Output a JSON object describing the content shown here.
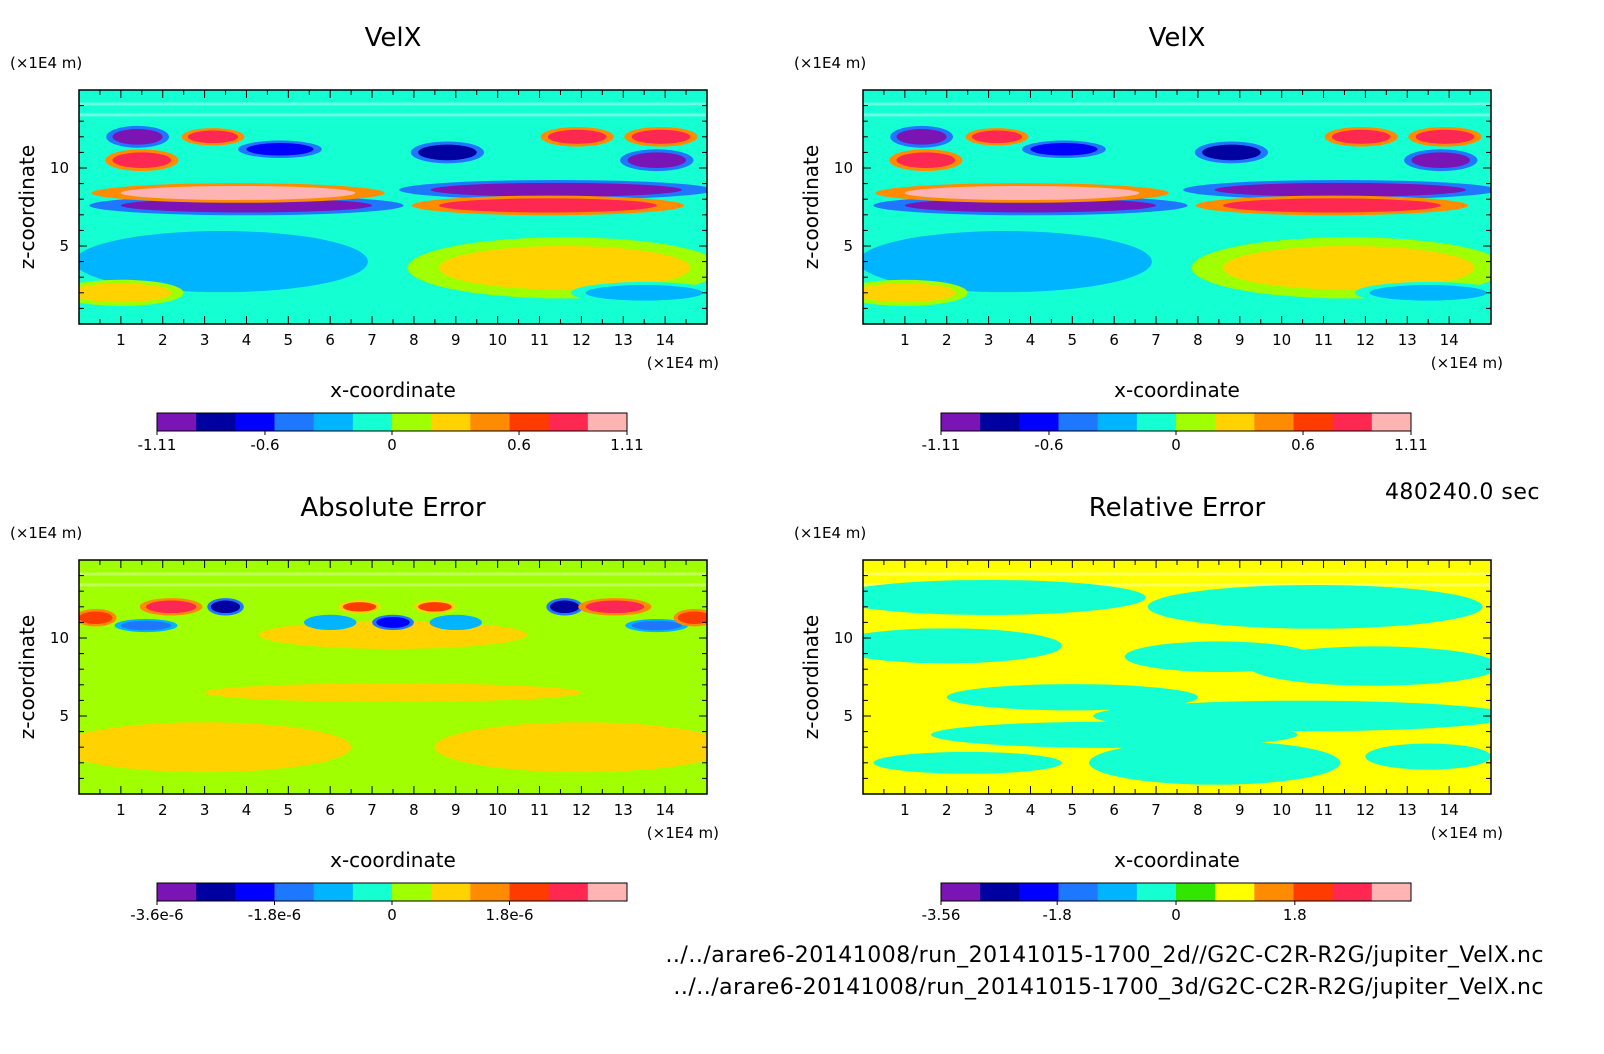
{
  "figure": {
    "time_label": "480240.0 sec",
    "files": [
      "../../arare6-20141008/run_20141015-1700_2d//G2C-C2R-R2G/jupiter_VelX.nc",
      "../../arare6-20141008/run_20141015-1700_3d/G2C-C2R-R2G/jupiter_VelX.nc"
    ]
  },
  "chart_data": [
    {
      "type": "heatmap",
      "title": "VelX",
      "xlabel": "x-coordinate",
      "ylabel": "z-coordinate",
      "x_unit": "(×1E4 m)",
      "y_unit": "(×1E4 m)",
      "xlim": [
        0,
        15
      ],
      "ylim": [
        0,
        15
      ],
      "x_ticks": [
        "1",
        "2",
        "3",
        "4",
        "5",
        "6",
        "7",
        "8",
        "9",
        "10",
        "11",
        "12",
        "13",
        "14"
      ],
      "y_ticks": [
        "5",
        "10"
      ],
      "colorbar": {
        "colors": [
          "#7b14b4",
          "#0000a0",
          "#0000ff",
          "#1e78ff",
          "#00b4ff",
          "#14ffd2",
          "#a0ff00",
          "#ffd200",
          "#ff8c00",
          "#ff3c00",
          "#ff2850",
          "#ffb4b4"
        ],
        "tick_labels": [
          "-1.11",
          "-0.6",
          "0",
          "0.6",
          "1.11"
        ],
        "tick_values": [
          -1.11,
          -0.6,
          0,
          0.6,
          1.11
        ],
        "range": [
          -1.11,
          1.11
        ]
      },
      "field": {
        "background": "#14ffd2",
        "features": [
          {
            "x": 4.0,
            "z": 7.6,
            "rx": 3.0,
            "rz": 0.45,
            "value": -1.0
          },
          {
            "x": 3.8,
            "z": 8.4,
            "rx": 2.8,
            "rz": 0.45,
            "value": 1.0
          },
          {
            "x": 11.4,
            "z": 8.6,
            "rx": 3.0,
            "rz": 0.45,
            "value": -1.0
          },
          {
            "x": 11.2,
            "z": 7.6,
            "rx": 2.6,
            "rz": 0.45,
            "value": 0.9
          },
          {
            "x": 1.4,
            "z": 12.0,
            "rx": 0.6,
            "rz": 0.5,
            "value": -1.0
          },
          {
            "x": 1.5,
            "z": 10.5,
            "rx": 0.7,
            "rz": 0.5,
            "value": 0.9
          },
          {
            "x": 3.2,
            "z": 12.0,
            "rx": 0.6,
            "rz": 0.4,
            "value": 0.8
          },
          {
            "x": 4.8,
            "z": 11.2,
            "rx": 0.8,
            "rz": 0.4,
            "value": -0.7
          },
          {
            "x": 8.8,
            "z": 11.0,
            "rx": 0.7,
            "rz": 0.5,
            "value": -0.9
          },
          {
            "x": 11.9,
            "z": 12.0,
            "rx": 0.7,
            "rz": 0.45,
            "value": 0.9
          },
          {
            "x": 13.9,
            "z": 12.0,
            "rx": 0.7,
            "rz": 0.45,
            "value": 0.9
          },
          {
            "x": 13.8,
            "z": 10.5,
            "rx": 0.7,
            "rz": 0.5,
            "value": -1.0
          },
          {
            "x": 3.4,
            "z": 4.0,
            "rx": 2.8,
            "rz": 1.4,
            "value": -0.35
          },
          {
            "x": 11.6,
            "z": 3.6,
            "rx": 3.0,
            "rz": 1.4,
            "value": 0.3
          },
          {
            "x": 1.0,
            "z": 2.0,
            "rx": 1.2,
            "rz": 0.6,
            "value": 0.3
          },
          {
            "x": 13.5,
            "z": 2.0,
            "rx": 1.4,
            "rz": 0.5,
            "value": -0.3
          }
        ]
      }
    },
    {
      "type": "heatmap",
      "title": "VelX",
      "xlabel": "x-coordinate",
      "ylabel": "z-coordinate",
      "x_unit": "(×1E4 m)",
      "y_unit": "(×1E4 m)",
      "xlim": [
        0,
        15
      ],
      "ylim": [
        0,
        15
      ],
      "x_ticks": [
        "1",
        "2",
        "3",
        "4",
        "5",
        "6",
        "7",
        "8",
        "9",
        "10",
        "11",
        "12",
        "13",
        "14"
      ],
      "y_ticks": [
        "5",
        "10"
      ],
      "colorbar": {
        "colors": [
          "#7b14b4",
          "#0000a0",
          "#0000ff",
          "#1e78ff",
          "#00b4ff",
          "#14ffd2",
          "#a0ff00",
          "#ffd200",
          "#ff8c00",
          "#ff3c00",
          "#ff2850",
          "#ffb4b4"
        ],
        "tick_labels": [
          "-1.11",
          "-0.6",
          "0",
          "0.6",
          "1.11"
        ],
        "tick_values": [
          -1.11,
          -0.6,
          0,
          0.6,
          1.11
        ],
        "range": [
          -1.11,
          1.11
        ]
      },
      "field": {
        "background": "#14ffd2",
        "features": [
          {
            "x": 4.0,
            "z": 7.6,
            "rx": 3.0,
            "rz": 0.45,
            "value": -1.0
          },
          {
            "x": 3.8,
            "z": 8.4,
            "rx": 2.8,
            "rz": 0.45,
            "value": 1.0
          },
          {
            "x": 11.4,
            "z": 8.6,
            "rx": 3.0,
            "rz": 0.45,
            "value": -1.0
          },
          {
            "x": 11.2,
            "z": 7.6,
            "rx": 2.6,
            "rz": 0.45,
            "value": 0.9
          },
          {
            "x": 1.4,
            "z": 12.0,
            "rx": 0.6,
            "rz": 0.5,
            "value": -1.0
          },
          {
            "x": 1.5,
            "z": 10.5,
            "rx": 0.7,
            "rz": 0.5,
            "value": 0.9
          },
          {
            "x": 3.2,
            "z": 12.0,
            "rx": 0.6,
            "rz": 0.4,
            "value": 0.8
          },
          {
            "x": 4.8,
            "z": 11.2,
            "rx": 0.8,
            "rz": 0.4,
            "value": -0.7
          },
          {
            "x": 8.8,
            "z": 11.0,
            "rx": 0.7,
            "rz": 0.5,
            "value": -0.9
          },
          {
            "x": 11.9,
            "z": 12.0,
            "rx": 0.7,
            "rz": 0.45,
            "value": 0.9
          },
          {
            "x": 13.9,
            "z": 12.0,
            "rx": 0.7,
            "rz": 0.45,
            "value": 0.9
          },
          {
            "x": 13.8,
            "z": 10.5,
            "rx": 0.7,
            "rz": 0.5,
            "value": -1.0
          },
          {
            "x": 3.4,
            "z": 4.0,
            "rx": 2.8,
            "rz": 1.4,
            "value": -0.35
          },
          {
            "x": 11.6,
            "z": 3.6,
            "rx": 3.0,
            "rz": 1.4,
            "value": 0.3
          },
          {
            "x": 1.0,
            "z": 2.0,
            "rx": 1.2,
            "rz": 0.6,
            "value": 0.3
          },
          {
            "x": 13.5,
            "z": 2.0,
            "rx": 1.4,
            "rz": 0.5,
            "value": -0.3
          }
        ]
      }
    },
    {
      "type": "heatmap",
      "title": "Absolute Error",
      "xlabel": "x-coordinate",
      "ylabel": "z-coordinate",
      "x_unit": "(×1E4 m)",
      "y_unit": "(×1E4 m)",
      "xlim": [
        0,
        15
      ],
      "ylim": [
        0,
        15
      ],
      "x_ticks": [
        "1",
        "2",
        "3",
        "4",
        "5",
        "6",
        "7",
        "8",
        "9",
        "10",
        "11",
        "12",
        "13",
        "14"
      ],
      "y_ticks": [
        "5",
        "10"
      ],
      "colorbar": {
        "colors": [
          "#7b14b4",
          "#0000a0",
          "#0000ff",
          "#1e78ff",
          "#00b4ff",
          "#14ffd2",
          "#a0ff00",
          "#ffd200",
          "#ff8c00",
          "#ff3c00",
          "#ff2850",
          "#ffb4b4"
        ],
        "tick_labels": [
          "-3.6e-6",
          "-1.8e-6",
          "0",
          "1.8e-6"
        ],
        "tick_values": [
          -3.6e-06,
          -1.8e-06,
          0,
          1.8e-06
        ],
        "range": [
          -3.6e-06,
          3.6e-06
        ]
      },
      "field": {
        "background": "#a0ff00",
        "features": [
          {
            "x": 7.5,
            "z": 10.2,
            "rx": 3.2,
            "rz": 0.9,
            "value": 8e-07
          },
          {
            "x": 2.2,
            "z": 12.0,
            "rx": 0.6,
            "rz": 0.4,
            "value": 2.4e-06
          },
          {
            "x": 3.5,
            "z": 12.0,
            "rx": 0.35,
            "rz": 0.4,
            "value": -2.6e-06
          },
          {
            "x": 1.6,
            "z": 10.8,
            "rx": 0.6,
            "rz": 0.3,
            "value": -1.4e-06
          },
          {
            "x": 6.0,
            "z": 11.0,
            "rx": 0.5,
            "rz": 0.35,
            "value": -1.2e-06
          },
          {
            "x": 6.7,
            "z": 12.0,
            "rx": 0.4,
            "rz": 0.3,
            "value": 2e-06
          },
          {
            "x": 7.5,
            "z": 11.0,
            "rx": 0.4,
            "rz": 0.35,
            "value": -2.2e-06
          },
          {
            "x": 8.5,
            "z": 12.0,
            "rx": 0.4,
            "rz": 0.3,
            "value": 2e-06
          },
          {
            "x": 9.0,
            "z": 11.0,
            "rx": 0.5,
            "rz": 0.35,
            "value": -1.2e-06
          },
          {
            "x": 11.6,
            "z": 12.0,
            "rx": 0.35,
            "rz": 0.4,
            "value": -2.6e-06
          },
          {
            "x": 12.8,
            "z": 12.0,
            "rx": 0.7,
            "rz": 0.4,
            "value": 2.4e-06
          },
          {
            "x": 13.8,
            "z": 10.8,
            "rx": 0.6,
            "rz": 0.3,
            "value": -1.4e-06
          },
          {
            "x": 0.4,
            "z": 11.3,
            "rx": 0.4,
            "rz": 0.4,
            "value": 2.2e-06
          },
          {
            "x": 14.7,
            "z": 11.3,
            "rx": 0.4,
            "rz": 0.4,
            "value": 2.2e-06
          },
          {
            "x": 3.0,
            "z": 3.0,
            "rx": 3.5,
            "rz": 1.6,
            "value": 8e-07
          },
          {
            "x": 12.0,
            "z": 3.0,
            "rx": 3.5,
            "rz": 1.6,
            "value": 8e-07
          },
          {
            "x": 7.5,
            "z": 6.5,
            "rx": 4.5,
            "rz": 0.6,
            "value": 7e-07
          }
        ]
      }
    },
    {
      "type": "heatmap",
      "title": "Relative Error",
      "xlabel": "x-coordinate",
      "ylabel": "z-coordinate",
      "x_unit": "(×1E4 m)",
      "y_unit": "(×1E4 m)",
      "xlim": [
        0,
        15
      ],
      "ylim": [
        0,
        15
      ],
      "x_ticks": [
        "1",
        "2",
        "3",
        "4",
        "5",
        "6",
        "7",
        "8",
        "9",
        "10",
        "11",
        "12",
        "13",
        "14"
      ],
      "y_ticks": [
        "5",
        "10"
      ],
      "colorbar": {
        "colors": [
          "#7b14b4",
          "#0000a0",
          "#0000ff",
          "#1e78ff",
          "#00b4ff",
          "#14ffd2",
          "#32e600",
          "#ffff00",
          "#ff8c00",
          "#ff3c00",
          "#ff2850",
          "#ffb4b4"
        ],
        "tick_labels": [
          "-3.56",
          "-1.8",
          "0",
          "1.8"
        ],
        "tick_values": [
          -3.56,
          -1.8,
          0,
          1.8
        ],
        "range": [
          -3.56,
          3.56
        ]
      },
      "field": {
        "background": "#ffff00",
        "features": [
          {
            "x": 3.0,
            "z": 12.6,
            "rx": 3.0,
            "rz": 0.8,
            "value": -0.2
          },
          {
            "x": 10.8,
            "z": 12.0,
            "rx": 3.2,
            "rz": 1.0,
            "value": -0.2
          },
          {
            "x": 2.0,
            "z": 9.5,
            "rx": 2.2,
            "rz": 0.8,
            "value": -0.2
          },
          {
            "x": 8.5,
            "z": 8.8,
            "rx": 1.8,
            "rz": 0.7,
            "value": -0.2
          },
          {
            "x": 12.2,
            "z": 8.2,
            "rx": 2.4,
            "rz": 0.9,
            "value": -0.2
          },
          {
            "x": 5.0,
            "z": 6.2,
            "rx": 2.4,
            "rz": 0.6,
            "value": -0.2
          },
          {
            "x": 10.5,
            "z": 5.0,
            "rx": 4.0,
            "rz": 0.7,
            "value": -0.2
          },
          {
            "x": 6.0,
            "z": 3.8,
            "rx": 3.5,
            "rz": 0.6,
            "value": -0.2
          },
          {
            "x": 8.4,
            "z": 2.0,
            "rx": 2.4,
            "rz": 1.0,
            "value": -0.2
          },
          {
            "x": 2.5,
            "z": 2.0,
            "rx": 1.8,
            "rz": 0.5,
            "value": -0.2
          },
          {
            "x": 13.5,
            "z": 2.4,
            "rx": 1.2,
            "rz": 0.6,
            "value": -0.2
          },
          {
            "x": 12.0,
            "z": 11.3,
            "rx": 0.5,
            "rz": 0.4,
            "value": -0.2
          }
        ]
      }
    }
  ]
}
